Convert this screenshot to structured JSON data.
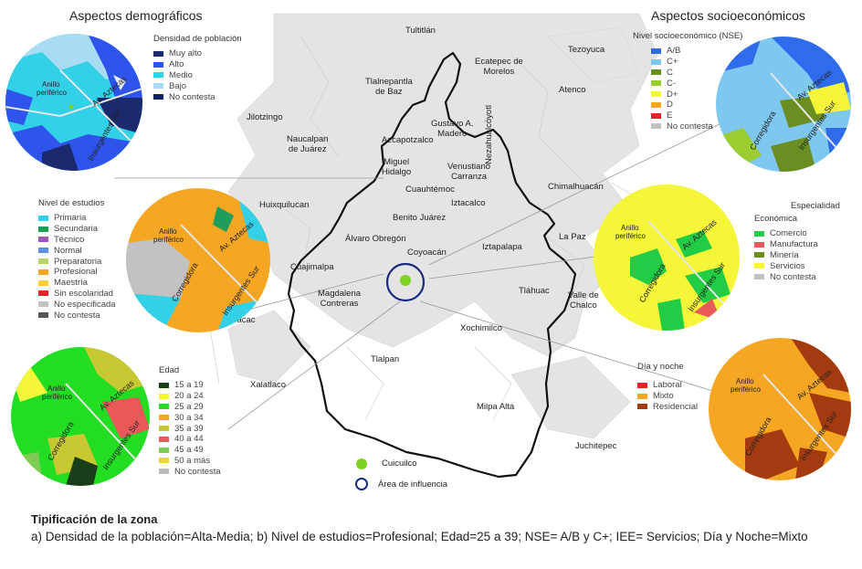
{
  "titles": {
    "demographic": "Aspectos demográficos",
    "socioeconomic": "Aspectos socioeconómicos"
  },
  "legends": {
    "density": {
      "title": "Densidad de población",
      "items": [
        {
          "label": "Muy alto",
          "color": "#1a2a6c"
        },
        {
          "label": "Alto",
          "color": "#2f54eb"
        },
        {
          "label": "Medio",
          "color": "#33d1e8"
        },
        {
          "label": "Bajo",
          "color": "#a8dcf5"
        },
        {
          "label": "No contesta",
          "color": "#102060"
        }
      ]
    },
    "studies": {
      "title": "Nivel de estudios",
      "items": [
        {
          "label": "Primaria",
          "color": "#33d1e8"
        },
        {
          "label": "Secundaria",
          "color": "#1e9e5a"
        },
        {
          "label": "Técnico",
          "color": "#9b59b6"
        },
        {
          "label": "Normal",
          "color": "#5b8fe8"
        },
        {
          "label": "Preparatoria",
          "color": "#b5d56a"
        },
        {
          "label": "Profesional",
          "color": "#f5a623"
        },
        {
          "label": "Maestría",
          "color": "#f7d038"
        },
        {
          "label": "Sin escolaridad",
          "color": "#e8222a"
        },
        {
          "label": "No especificada",
          "color": "#c2c2c2"
        },
        {
          "label": "No contesta",
          "color": "#555555"
        }
      ]
    },
    "age": {
      "title": "Edad",
      "items": [
        {
          "label": "15 a 19",
          "color": "#1a3d1a"
        },
        {
          "label": "20 a 24",
          "color": "#f5f53a"
        },
        {
          "label": "25 a 29",
          "color": "#22dd22"
        },
        {
          "label": "30 a 34",
          "color": "#f5a623"
        },
        {
          "label": "35 a 39",
          "color": "#c8c832"
        },
        {
          "label": "40 a 44",
          "color": "#e85a5a"
        },
        {
          "label": "45 a 49",
          "color": "#7fcc55"
        },
        {
          "label": "50 a más",
          "color": "#e8d83a"
        },
        {
          "label": "No contesta",
          "color": "#bbbbbb"
        }
      ]
    },
    "nse": {
      "title": "Nivel socioeconómico (NSE)",
      "items": [
        {
          "label": "A/B",
          "color": "#2f6ceb"
        },
        {
          "label": "C+",
          "color": "#7ec8f0"
        },
        {
          "label": "C",
          "color": "#6b8e23"
        },
        {
          "label": "C-",
          "color": "#9acd32"
        },
        {
          "label": "D+",
          "color": "#f5f53a"
        },
        {
          "label": "D",
          "color": "#f5a623"
        },
        {
          "label": "E",
          "color": "#e8222a"
        },
        {
          "label": "No contesta",
          "color": "#c2c2c2"
        }
      ]
    },
    "specialty": {
      "title_line1": "Especialidad",
      "title_line2": "Económica",
      "items": [
        {
          "label": "Comercio",
          "color": "#22cc44"
        },
        {
          "label": "Manufactura",
          "color": "#e85a5a"
        },
        {
          "label": "Minería",
          "color": "#6b8e23"
        },
        {
          "label": "Servicios",
          "color": "#f5f53a"
        },
        {
          "label": "No contesta",
          "color": "#c2c2c2"
        }
      ]
    },
    "daynight": {
      "title": "Día y noche",
      "items": [
        {
          "label": "Laboral",
          "color": "#e8222a"
        },
        {
          "label": "Mixto",
          "color": "#f5a623"
        },
        {
          "label": "Residencial",
          "color": "#a33a10"
        }
      ]
    }
  },
  "map_labels": {
    "tultitlan": "Tultitlán",
    "ecatepec": "Ecatepec de\nMorelos",
    "tezoyuca": "Tezoyuca",
    "tlalnepantla": "Tlalnepantla\nde Baz",
    "atenco": "Atenco",
    "jilotzingo": "Jilotzingo",
    "gustavo": "Gustavo A.\nMadero",
    "naucalpan": "Naucalpan\nde Juárez",
    "azcapotzalco": "Azcapotzalco",
    "venustiano": "Venustiano\nCarranza",
    "nezahualcoyotl": "Nezahualcóyotl",
    "miguel": "Miguel\nHidalgo",
    "chimalhuacan": "Chimalhuacán",
    "cuauhtemoc": "Cuauhtémoc",
    "huixquilucan": "Huixquilucan",
    "iztacalco": "Iztacalco",
    "benito": "Benito Juárez",
    "alvaro": "Álvaro Obregón",
    "lapaz": "La Paz",
    "coyoacan": "Coyoacán",
    "iztapalapa": "Iztapalapa",
    "cuajimalpa": "Cuajimalpa",
    "magdalena": "Magdalena\nContreras",
    "tlahuac": "Tláhuac",
    "valle": "Valle de\nChalco",
    "ocoyoacac": "Ocoyoacac",
    "xochimilco": "Xochimilco",
    "tlalpan": "Tlalpan",
    "xalatlaco": "Xalatlaco",
    "milpa": "Milpa Alta",
    "juchitepec": "Juchitepec"
  },
  "circle_labels": {
    "anillo": "Anillo\nperiférico",
    "aztecas": "Av. Aztecas",
    "insurgentes": "Insurgentes Sur",
    "corregidora": "Corregidora"
  },
  "map_legend": {
    "cuicuilco": "Cuicuilco",
    "area": "Área de influencia",
    "cuicuilco_color": "#7ed321",
    "area_color": "#1a2a80"
  },
  "caption": {
    "heading": "Tipificación de la zona",
    "body": "a) Densidad de la población=Alta-Media; b) Nivel de estudios=Profesional; Edad=25 a 39; NSE= A/B y C+; IEE= Servicios; Día y Noche=Mixto"
  }
}
